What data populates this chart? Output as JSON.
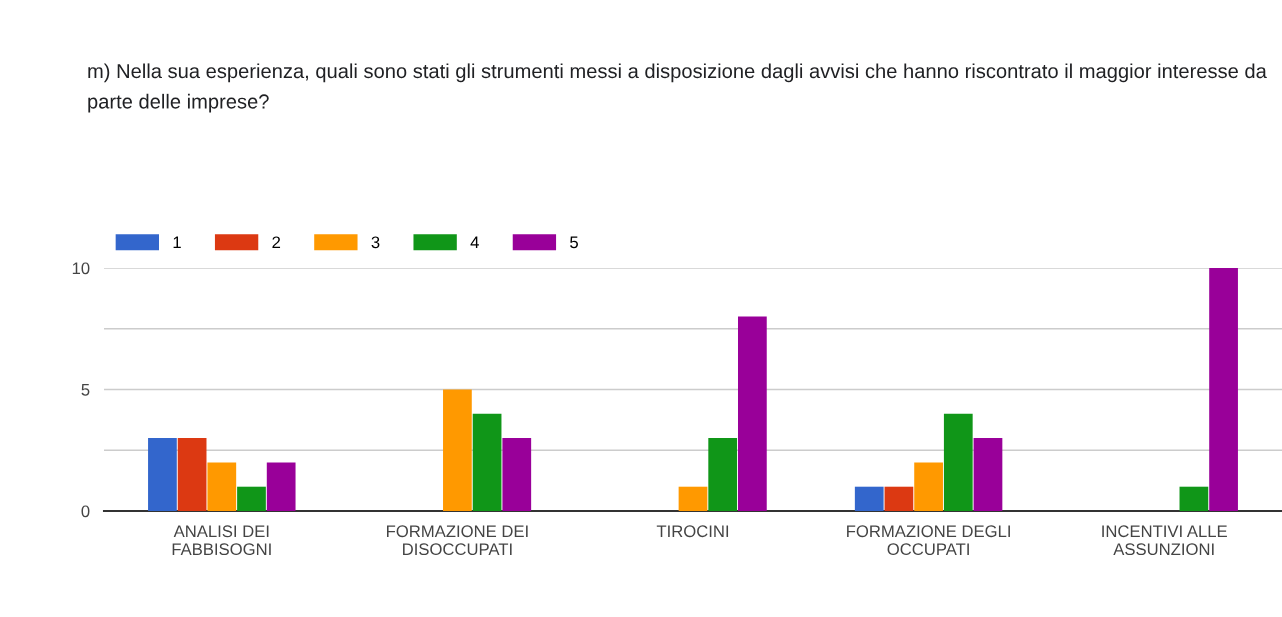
{
  "chart_data": {
    "type": "bar",
    "title": "m) Nella sua esperienza, quali sono stati gli strumenti messi a disposizione dagli avvisi che hanno riscontrato il maggior interesse da parte delle imprese?",
    "categories": [
      "ANALISI DEI\nFABBISOGNI",
      "FORMAZIONE DEI\nDISOCCUPATI",
      "TIROCINI",
      "FORMAZIONE DEGLI\nOCCUPATI",
      "INCENTIVI ALLE\nASSUNZIONI"
    ],
    "series": [
      {
        "name": "1",
        "color": "#3366cc",
        "values": [
          3,
          0,
          0,
          1,
          0
        ]
      },
      {
        "name": "2",
        "color": "#dc3912",
        "values": [
          3,
          0,
          0,
          1,
          0
        ]
      },
      {
        "name": "3",
        "color": "#ff9900",
        "values": [
          2,
          5,
          1,
          2,
          0
        ]
      },
      {
        "name": "4",
        "color": "#109618",
        "values": [
          1,
          4,
          3,
          4,
          1
        ]
      },
      {
        "name": "5",
        "color": "#990099",
        "values": [
          2,
          3,
          8,
          3,
          10
        ]
      }
    ],
    "ylim": [
      0,
      10
    ],
    "yticks": [
      0,
      {
        "value": 2.5,
        "label": null
      },
      5,
      {
        "value": 7.5,
        "label": null
      },
      10
    ],
    "grid": "y",
    "legend": "top left"
  }
}
